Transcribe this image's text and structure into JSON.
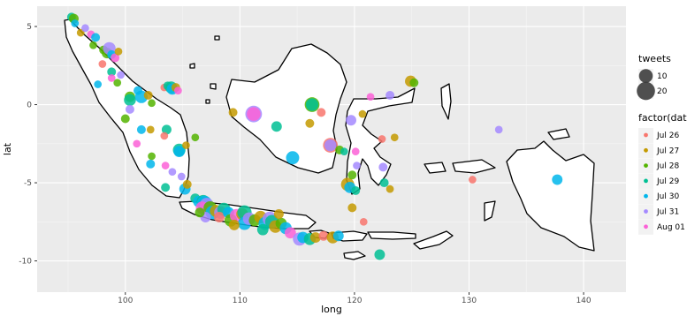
{
  "chart_data": {
    "type": "scatter",
    "title": "",
    "xlabel": "long",
    "ylabel": "lat",
    "xlim": [
      92.3,
      143.7
    ],
    "ylim": [
      -12.0,
      6.3
    ],
    "xticks": [
      100,
      110,
      120,
      130,
      140
    ],
    "yticks": [
      5,
      0,
      -5,
      -10
    ],
    "grid": true,
    "legend_position": "right",
    "size_legend": {
      "title": "tweets",
      "entries": [
        {
          "label": "10",
          "value": 10
        },
        {
          "label": "20",
          "value": 20
        }
      ]
    },
    "color_legend": {
      "title": "factor(date",
      "entries": [
        {
          "label": "Jul 26",
          "color": "#F8766D"
        },
        {
          "label": "Jul 27",
          "color": "#C49A00"
        },
        {
          "label": "Jul 28",
          "color": "#53B400"
        },
        {
          "label": "Jul 29",
          "color": "#00C094"
        },
        {
          "label": "Jul 30",
          "color": "#00B6EB"
        },
        {
          "label": "Jul 31",
          "color": "#A58AFF"
        },
        {
          "label": "Aug 01",
          "color": "#FB61D7"
        }
      ]
    },
    "points": [
      {
        "x": 95.3,
        "y": 5.6,
        "size": 3,
        "date": "Jul 29"
      },
      {
        "x": 95.5,
        "y": 5.5,
        "size": 4,
        "date": "Jul 28"
      },
      {
        "x": 95.6,
        "y": 5.2,
        "size": 2,
        "date": "Jul 30"
      },
      {
        "x": 96.1,
        "y": 4.6,
        "size": 2,
        "date": "Jul 27"
      },
      {
        "x": 96.5,
        "y": 4.9,
        "size": 2,
        "date": "Jul 31"
      },
      {
        "x": 97.0,
        "y": 4.5,
        "size": 2,
        "date": "Aug 01"
      },
      {
        "x": 97.4,
        "y": 4.3,
        "size": 3,
        "date": "Jul 30"
      },
      {
        "x": 97.2,
        "y": 3.8,
        "size": 2,
        "date": "Jul 28"
      },
      {
        "x": 98.1,
        "y": 3.5,
        "size": 3,
        "date": "Jul 28"
      },
      {
        "x": 98.4,
        "y": 3.3,
        "size": 5,
        "date": "Jul 28"
      },
      {
        "x": 98.6,
        "y": 3.6,
        "size": 8,
        "date": "Jul 31"
      },
      {
        "x": 98.8,
        "y": 3.2,
        "size": 3,
        "date": "Jul 30"
      },
      {
        "x": 99.1,
        "y": 3.0,
        "size": 3,
        "date": "Aug 01"
      },
      {
        "x": 99.4,
        "y": 3.4,
        "size": 2,
        "date": "Jul 27"
      },
      {
        "x": 98.0,
        "y": 2.6,
        "size": 2,
        "date": "Jul 26"
      },
      {
        "x": 98.8,
        "y": 2.1,
        "size": 3,
        "date": "Jul 29"
      },
      {
        "x": 99.6,
        "y": 1.9,
        "size": 2,
        "date": "Jul 31"
      },
      {
        "x": 99.3,
        "y": 1.4,
        "size": 2,
        "date": "Jul 28"
      },
      {
        "x": 97.6,
        "y": 1.3,
        "size": 2,
        "date": "Jul 30"
      },
      {
        "x": 98.8,
        "y": 1.7,
        "size": 2,
        "date": "Aug 01"
      },
      {
        "x": 100.4,
        "y": 0.5,
        "size": 5,
        "date": "Jul 28"
      },
      {
        "x": 100.4,
        "y": 0.3,
        "size": 7,
        "date": "Jul 29"
      },
      {
        "x": 101.1,
        "y": 0.9,
        "size": 3,
        "date": "Jul 30"
      },
      {
        "x": 101.4,
        "y": 0.5,
        "size": 8,
        "date": "Jul 30"
      },
      {
        "x": 102.0,
        "y": 0.6,
        "size": 3,
        "date": "Jul 27"
      },
      {
        "x": 102.3,
        "y": 0.1,
        "size": 2,
        "date": "Jul 28"
      },
      {
        "x": 103.4,
        "y": 1.1,
        "size": 2,
        "date": "Jul 26"
      },
      {
        "x": 103.7,
        "y": 1.2,
        "size": 3,
        "date": "Jul 29"
      },
      {
        "x": 104.0,
        "y": 1.1,
        "size": 7,
        "date": "Jul 29"
      },
      {
        "x": 104.1,
        "y": 1.0,
        "size": 6,
        "date": "Jul 30"
      },
      {
        "x": 104.4,
        "y": 1.1,
        "size": 3,
        "date": "Jul 27"
      },
      {
        "x": 104.6,
        "y": 0.9,
        "size": 2,
        "date": "Aug 01"
      },
      {
        "x": 100.0,
        "y": -0.9,
        "size": 3,
        "date": "Jul 28"
      },
      {
        "x": 100.4,
        "y": -0.3,
        "size": 3,
        "date": "Jul 31"
      },
      {
        "x": 101.4,
        "y": -1.6,
        "size": 3,
        "date": "Jul 30"
      },
      {
        "x": 102.2,
        "y": -1.6,
        "size": 2,
        "date": "Jul 27"
      },
      {
        "x": 103.6,
        "y": -1.6,
        "size": 4,
        "date": "Jul 29"
      },
      {
        "x": 101.0,
        "y": -2.5,
        "size": 2,
        "date": "Aug 01"
      },
      {
        "x": 102.3,
        "y": -3.3,
        "size": 2,
        "date": "Jul 28"
      },
      {
        "x": 103.4,
        "y": -2.0,
        "size": 2,
        "date": "Jul 26"
      },
      {
        "x": 104.7,
        "y": -2.9,
        "size": 8,
        "date": "Jul 29"
      },
      {
        "x": 104.7,
        "y": -3.0,
        "size": 6,
        "date": "Jul 30"
      },
      {
        "x": 105.3,
        "y": -2.6,
        "size": 2,
        "date": "Jul 27"
      },
      {
        "x": 106.1,
        "y": -2.1,
        "size": 2,
        "date": "Jul 28"
      },
      {
        "x": 102.2,
        "y": -3.8,
        "size": 3,
        "date": "Jul 30"
      },
      {
        "x": 103.5,
        "y": -3.9,
        "size": 2,
        "date": "Aug 01"
      },
      {
        "x": 104.1,
        "y": -4.3,
        "size": 2,
        "date": "Jul 31"
      },
      {
        "x": 103.5,
        "y": -5.3,
        "size": 3,
        "date": "Jul 29"
      },
      {
        "x": 105.2,
        "y": -5.4,
        "size": 6,
        "date": "Jul 30"
      },
      {
        "x": 105.4,
        "y": -5.1,
        "size": 3,
        "date": "Jul 27"
      },
      {
        "x": 104.9,
        "y": -4.6,
        "size": 2,
        "date": "Jul 31"
      },
      {
        "x": 106.1,
        "y": -6.0,
        "size": 4,
        "date": "Jul 29"
      },
      {
        "x": 106.4,
        "y": -6.2,
        "size": 6,
        "date": "Jul 30"
      },
      {
        "x": 106.8,
        "y": -6.2,
        "size": 9,
        "date": "Jul 29"
      },
      {
        "x": 106.9,
        "y": -6.3,
        "size": 12,
        "date": "Jul 30"
      },
      {
        "x": 107.1,
        "y": -6.4,
        "size": 10,
        "date": "Jul 31"
      },
      {
        "x": 106.7,
        "y": -6.6,
        "size": 8,
        "date": "Aug 01"
      },
      {
        "x": 107.4,
        "y": -6.6,
        "size": 9,
        "date": "Jul 28"
      },
      {
        "x": 107.6,
        "y": -6.9,
        "size": 10,
        "date": "Jul 30"
      },
      {
        "x": 107.9,
        "y": -6.8,
        "size": 7,
        "date": "Jul 27"
      },
      {
        "x": 108.3,
        "y": -6.9,
        "size": 8,
        "date": "Jul 31"
      },
      {
        "x": 108.6,
        "y": -6.7,
        "size": 9,
        "date": "Jul 29"
      },
      {
        "x": 108.2,
        "y": -7.2,
        "size": 5,
        "date": "Jul 26"
      },
      {
        "x": 109.0,
        "y": -6.9,
        "size": 6,
        "date": "Jul 30"
      },
      {
        "x": 109.2,
        "y": -7.4,
        "size": 8,
        "date": "Jul 28"
      },
      {
        "x": 109.7,
        "y": -7.1,
        "size": 9,
        "date": "Aug 01"
      },
      {
        "x": 110.2,
        "y": -7.0,
        "size": 7,
        "date": "Jul 27"
      },
      {
        "x": 110.4,
        "y": -6.9,
        "size": 11,
        "date": "Jul 29"
      },
      {
        "x": 110.4,
        "y": -7.6,
        "size": 9,
        "date": "Jul 30"
      },
      {
        "x": 110.8,
        "y": -7.3,
        "size": 8,
        "date": "Jul 31"
      },
      {
        "x": 111.3,
        "y": -7.4,
        "size": 7,
        "date": "Jul 28"
      },
      {
        "x": 111.8,
        "y": -7.2,
        "size": 8,
        "date": "Jul 27"
      },
      {
        "x": 112.2,
        "y": -7.6,
        "size": 9,
        "date": "Jul 30"
      },
      {
        "x": 112.6,
        "y": -7.3,
        "size": 11,
        "date": "Jul 31"
      },
      {
        "x": 112.8,
        "y": -7.5,
        "size": 10,
        "date": "Jul 29"
      },
      {
        "x": 113.1,
        "y": -7.8,
        "size": 8,
        "date": "Jul 27"
      },
      {
        "x": 113.6,
        "y": -7.6,
        "size": 6,
        "date": "Jul 28"
      },
      {
        "x": 114.0,
        "y": -7.9,
        "size": 7,
        "date": "Jul 30"
      },
      {
        "x": 114.4,
        "y": -8.2,
        "size": 6,
        "date": "Aug 01"
      },
      {
        "x": 112.0,
        "y": -8.0,
        "size": 6,
        "date": "Jul 29"
      },
      {
        "x": 109.5,
        "y": -7.7,
        "size": 5,
        "date": "Jul 27"
      },
      {
        "x": 107.0,
        "y": -7.2,
        "size": 5,
        "date": "Jul 31"
      },
      {
        "x": 106.5,
        "y": -6.9,
        "size": 4,
        "date": "Jul 28"
      },
      {
        "x": 113.4,
        "y": -7.0,
        "size": 4,
        "date": "Jul 27"
      },
      {
        "x": 115.2,
        "y": -8.6,
        "size": 9,
        "date": "Jul 31"
      },
      {
        "x": 115.5,
        "y": -8.5,
        "size": 6,
        "date": "Jul 30"
      },
      {
        "x": 116.1,
        "y": -8.6,
        "size": 7,
        "date": "Jul 29"
      },
      {
        "x": 116.6,
        "y": -8.5,
        "size": 5,
        "date": "Jul 27"
      },
      {
        "x": 117.3,
        "y": -8.4,
        "size": 4,
        "date": "Jul 26"
      },
      {
        "x": 118.1,
        "y": -8.5,
        "size": 7,
        "date": "Jul 27"
      },
      {
        "x": 118.6,
        "y": -8.4,
        "size": 5,
        "date": "Jul 30"
      },
      {
        "x": 109.4,
        "y": -0.5,
        "size": 3,
        "date": "Jul 27"
      },
      {
        "x": 111.2,
        "y": -0.6,
        "size": 16,
        "date": "Jul 31"
      },
      {
        "x": 111.2,
        "y": -0.6,
        "size": 10,
        "date": "Aug 01"
      },
      {
        "x": 113.2,
        "y": -1.4,
        "size": 5,
        "date": "Jul 29"
      },
      {
        "x": 114.6,
        "y": -3.4,
        "size": 9,
        "date": "Jul 30"
      },
      {
        "x": 116.3,
        "y": 0.0,
        "size": 12,
        "date": "Jul 28"
      },
      {
        "x": 116.3,
        "y": 0.0,
        "size": 8,
        "date": "Jul 29"
      },
      {
        "x": 116.1,
        "y": -1.2,
        "size": 3,
        "date": "Jul 27"
      },
      {
        "x": 117.1,
        "y": -0.5,
        "size": 3,
        "date": "Jul 26"
      },
      {
        "x": 117.9,
        "y": -2.6,
        "size": 12,
        "date": "Jul 26"
      },
      {
        "x": 117.9,
        "y": -2.6,
        "size": 7,
        "date": "Jul 31"
      },
      {
        "x": 118.7,
        "y": -2.9,
        "size": 3,
        "date": "Jul 28"
      },
      {
        "x": 119.1,
        "y": -3.0,
        "size": 2,
        "date": "Jul 29"
      },
      {
        "x": 119.7,
        "y": -1.0,
        "size": 5,
        "date": "Jul 31"
      },
      {
        "x": 120.7,
        "y": -0.6,
        "size": 2,
        "date": "Jul 27"
      },
      {
        "x": 119.4,
        "y": -5.1,
        "size": 9,
        "date": "Jul 27"
      },
      {
        "x": 119.6,
        "y": -5.3,
        "size": 6,
        "date": "Jul 30"
      },
      {
        "x": 119.8,
        "y": -4.5,
        "size": 3,
        "date": "Jul 28"
      },
      {
        "x": 120.1,
        "y": -5.5,
        "size": 3,
        "date": "Jul 29"
      },
      {
        "x": 120.2,
        "y": -3.9,
        "size": 2,
        "date": "Jul 31"
      },
      {
        "x": 120.1,
        "y": -3.0,
        "size": 2,
        "date": "Aug 01"
      },
      {
        "x": 122.5,
        "y": -4.0,
        "size": 3,
        "date": "Jul 31"
      },
      {
        "x": 122.6,
        "y": -5.0,
        "size": 3,
        "date": "Jul 29"
      },
      {
        "x": 123.1,
        "y": -5.4,
        "size": 2,
        "date": "Jul 27"
      },
      {
        "x": 122.4,
        "y": -2.2,
        "size": 2,
        "date": "Jul 26"
      },
      {
        "x": 123.5,
        "y": -2.1,
        "size": 2,
        "date": "Jul 27"
      },
      {
        "x": 124.9,
        "y": 1.5,
        "size": 6,
        "date": "Jul 27"
      },
      {
        "x": 125.2,
        "y": 1.4,
        "size": 3,
        "date": "Jul 28"
      },
      {
        "x": 123.1,
        "y": 0.6,
        "size": 3,
        "date": "Jul 31"
      },
      {
        "x": 121.4,
        "y": 0.5,
        "size": 2,
        "date": "Aug 01"
      },
      {
        "x": 119.8,
        "y": -6.6,
        "size": 3,
        "date": "Jul 27"
      },
      {
        "x": 120.8,
        "y": -7.5,
        "size": 2,
        "date": "Jul 26"
      },
      {
        "x": 122.2,
        "y": -9.6,
        "size": 5,
        "date": "Jul 29"
      },
      {
        "x": 130.3,
        "y": -4.8,
        "size": 2,
        "date": "Jul 26"
      },
      {
        "x": 137.7,
        "y": -4.8,
        "size": 5,
        "date": "Jul 30"
      },
      {
        "x": 132.6,
        "y": -1.6,
        "size": 2,
        "date": "Jul 31"
      }
    ]
  }
}
